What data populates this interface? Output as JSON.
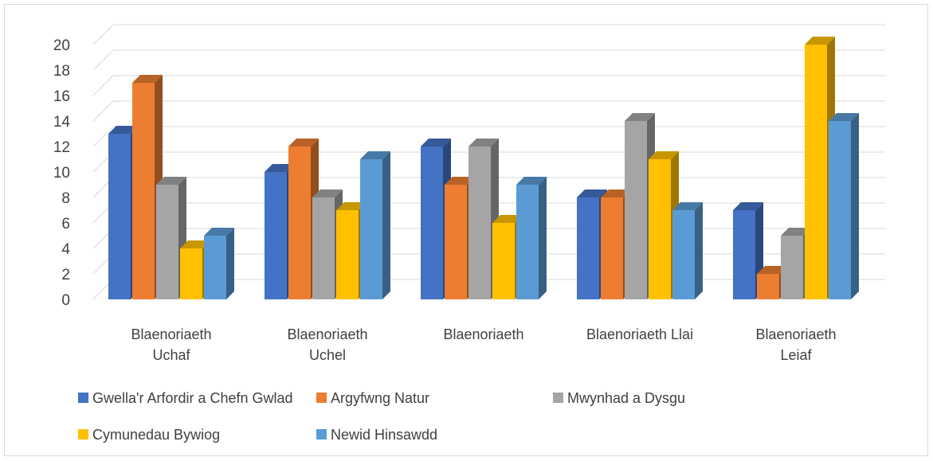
{
  "chart_data": {
    "type": "bar",
    "style": "3d-clustered-column",
    "categories": [
      [
        "Blaenoriaeth",
        "Uchaf"
      ],
      [
        "Blaenoriaeth",
        "Uchel"
      ],
      [
        "Blaenoriaeth"
      ],
      [
        "Blaenoriaeth Llai"
      ],
      [
        "Blaenoriaeth",
        "Leiaf"
      ]
    ],
    "series": [
      {
        "name": "Gwella'r Arfordir a Chefn Gwlad",
        "color": "#4472C4",
        "values": [
          13,
          10,
          12,
          8,
          7
        ]
      },
      {
        "name": "Argyfwng Natur",
        "color": "#ED7D31",
        "values": [
          17,
          12,
          9,
          8,
          2
        ]
      },
      {
        "name": "Mwynhad a Dysgu",
        "color": "#A5A5A5",
        "values": [
          9,
          8,
          12,
          14,
          5
        ]
      },
      {
        "name": "Cymunedau Bywiog",
        "color": "#FFC000",
        "values": [
          4,
          7,
          6,
          11,
          20
        ]
      },
      {
        "name": "Newid Hinsawdd",
        "color": "#5B9BD5",
        "values": [
          5,
          11,
          9,
          7,
          14
        ]
      }
    ],
    "ylim": [
      0,
      20
    ],
    "yticks": [
      0,
      2,
      4,
      6,
      8,
      10,
      12,
      14,
      16,
      18,
      20
    ],
    "grid": true,
    "legend_position": "bottom"
  }
}
